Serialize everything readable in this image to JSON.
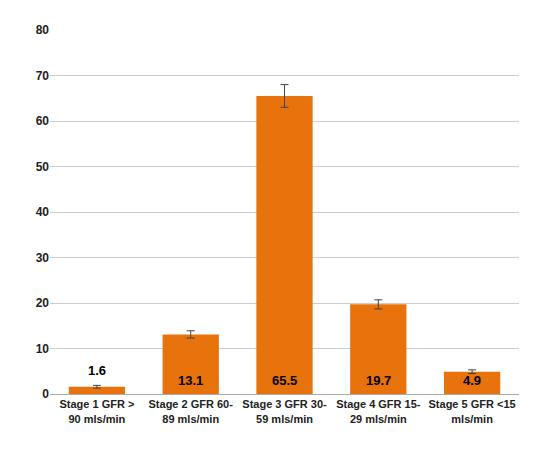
{
  "chart_data": {
    "type": "bar",
    "categories": [
      "Stage 1 GFR >\n90 mls/min",
      "Stage 2 GFR 60-\n89 mls/min",
      "Stage 3 GFR 30-\n59 mls/min",
      "Stage 4 GFR 15-\n29 mls/min",
      "Stage 5 GFR <15\nmls/min"
    ],
    "values": [
      1.6,
      13.1,
      65.5,
      19.7,
      4.9
    ],
    "errors": [
      0.3,
      0.8,
      2.5,
      1.0,
      0.4
    ],
    "color": "#E8720C",
    "ylim": [
      0,
      80
    ],
    "yticks": [
      0,
      10,
      20,
      30,
      40,
      50,
      60,
      70,
      80
    ],
    "grid": true,
    "data_labels": true
  }
}
